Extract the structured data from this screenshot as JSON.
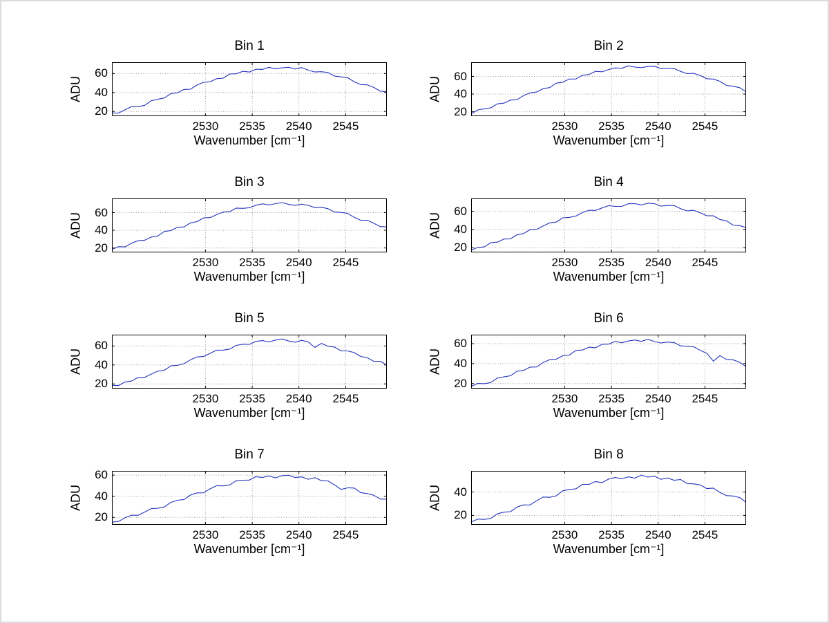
{
  "figure": {
    "background": "#ffffff",
    "border_color": "#dcdcdc"
  },
  "chart_data": {
    "type": "line",
    "layout": "4 rows x 2 columns of subplots, shared axis style, dotted grid on",
    "line_color": "#2233bb",
    "grid_color": "#9a9a9a",
    "axis_color": "#000000",
    "xlabel": "Wavenumber [cm⁻¹]",
    "ylabel": "ADU",
    "xticks": [
      2530,
      2535,
      2540,
      2545
    ],
    "xlim": [
      2520,
      2549.4
    ],
    "x": [
      2520.0,
      2520.7,
      2521.4,
      2522.1,
      2522.8,
      2523.5,
      2524.2,
      2524.9,
      2525.6,
      2526.3,
      2527.0,
      2527.7,
      2528.4,
      2529.1,
      2529.8,
      2530.5,
      2531.2,
      2531.9,
      2532.6,
      2533.3,
      2534.0,
      2534.7,
      2535.4,
      2536.1,
      2536.8,
      2537.5,
      2538.2,
      2538.9,
      2539.6,
      2540.3,
      2541.0,
      2541.7,
      2542.4,
      2543.1,
      2543.8,
      2544.5,
      2545.2,
      2545.9,
      2546.6,
      2547.3,
      2548.0,
      2548.7,
      2549.4
    ],
    "series": [
      {
        "name": "Bin 1",
        "ylim": [
          15,
          72
        ],
        "yticks": [
          20,
          40,
          60
        ],
        "values": [
          18.4,
          18.3,
          21.8,
          25.0,
          25.0,
          26.5,
          31.3,
          32.8,
          34.2,
          38.8,
          39.7,
          43.2,
          43.5,
          47.9,
          50.8,
          51.3,
          54.6,
          55.2,
          59.6,
          59.8,
          62.4,
          61.6,
          64.6,
          64.4,
          66.7,
          64.9,
          66.1,
          66.7,
          64.8,
          66.4,
          63.6,
          61.7,
          62.0,
          61.1,
          57.3,
          56.5,
          55.6,
          51.5,
          48.4,
          48.1,
          45.4,
          41.4,
          40.9
        ]
      },
      {
        "name": "Bin 2",
        "ylim": [
          15,
          76
        ],
        "yticks": [
          20,
          40,
          60
        ],
        "values": [
          17.6,
          22.0,
          23.3,
          24.4,
          28.9,
          29.7,
          33.2,
          33.6,
          38.2,
          41.4,
          42.3,
          46.1,
          47.3,
          52.4,
          53.4,
          57.0,
          57.1,
          61.2,
          62.2,
          65.7,
          65.2,
          67.7,
          69.6,
          69.1,
          71.9,
          70.5,
          69.8,
          71.4,
          71.5,
          68.9,
          69.0,
          68.9,
          65.6,
          63.1,
          63.4,
          61.0,
          57.3,
          57.0,
          54.4,
          49.8,
          48.8,
          47.3,
          42.5
        ]
      },
      {
        "name": "Bin 3",
        "ylim": [
          15,
          76
        ],
        "yticks": [
          20,
          40,
          60
        ],
        "values": [
          18.4,
          21.4,
          21.2,
          25.4,
          28.2,
          28.8,
          32.3,
          33.5,
          38.6,
          39.6,
          43.4,
          43.8,
          48.3,
          49.8,
          54.0,
          54.3,
          57.7,
          60.6,
          61.1,
          65.1,
          64.8,
          65.5,
          68.3,
          69.9,
          68.6,
          70.1,
          71.3,
          69.3,
          68.1,
          69.5,
          68.2,
          65.6,
          66.1,
          64.4,
          60.6,
          60.2,
          59.1,
          54.7,
          51.4,
          51.4,
          47.9,
          44.2,
          43.8
        ]
      },
      {
        "name": "Bin 4",
        "ylim": [
          15,
          74
        ],
        "yticks": [
          20,
          40,
          60
        ],
        "values": [
          17.4,
          20.4,
          21.0,
          25.6,
          26.2,
          29.6,
          29.8,
          34.2,
          35.6,
          39.9,
          40.2,
          43.9,
          47.2,
          48.2,
          52.8,
          53.3,
          54.7,
          58.6,
          61.1,
          60.9,
          63.6,
          66.1,
          65.3,
          65.4,
          68.2,
          68.3,
          66.9,
          68.8,
          68.3,
          65.6,
          66.3,
          66.3,
          62.8,
          60.4,
          61.1,
          58.3,
          55.0,
          55.0,
          51.0,
          49.6,
          44.9,
          44.3,
          42.2
        ]
      },
      {
        "name": "Bin 5",
        "ylim": [
          15,
          72
        ],
        "yticks": [
          20,
          40,
          60
        ],
        "values": [
          18.5,
          18.2,
          22.0,
          23.0,
          26.8,
          26.9,
          30.3,
          33.4,
          34.4,
          39.0,
          39.6,
          41.3,
          45.5,
          48.5,
          48.9,
          52.3,
          55.6,
          55.7,
          56.8,
          60.7,
          61.9,
          61.8,
          64.9,
          65.7,
          64.3,
          66.3,
          67.5,
          65.3,
          64.1,
          66.0,
          64.2,
          58.5,
          62.8,
          59.7,
          58.9,
          54.8,
          54.8,
          53.1,
          49.0,
          47.7,
          43.9,
          43.9,
          39.8
        ]
      },
      {
        "name": "Bin 6",
        "ylim": [
          15,
          69
        ],
        "yticks": [
          20,
          40,
          60
        ],
        "values": [
          17.2,
          20.1,
          19.9,
          21.0,
          25.6,
          26.8,
          27.9,
          32.4,
          33.2,
          36.5,
          36.7,
          41.1,
          44.0,
          44.5,
          47.9,
          48.6,
          53.2,
          53.6,
          56.5,
          55.9,
          59.3,
          59.5,
          62.3,
          60.9,
          62.6,
          63.7,
          62.3,
          64.4,
          62.1,
          60.7,
          61.6,
          61.1,
          57.8,
          57.4,
          56.9,
          53.2,
          50.4,
          42.5,
          48.0,
          44.2,
          43.9,
          41.4,
          37.0
        ]
      },
      {
        "name": "Bin 7",
        "ylim": [
          13,
          64
        ],
        "yticks": [
          20,
          40,
          60
        ],
        "values": [
          15.4,
          16.2,
          19.7,
          22.1,
          22.0,
          25.1,
          28.3,
          28.6,
          29.9,
          34.2,
          36.2,
          36.9,
          41.1,
          43.2,
          43.3,
          47.0,
          50.0,
          49.8,
          50.7,
          54.7,
          55.2,
          55.3,
          58.5,
          57.7,
          59.2,
          57.4,
          59.5,
          59.9,
          57.7,
          58.3,
          56.1,
          57.6,
          54.8,
          54.5,
          50.8,
          46.5,
          48.0,
          47.8,
          43.5,
          42.5,
          41.0,
          37.3,
          37.3
        ]
      },
      {
        "name": "Bin 8",
        "ylim": [
          12,
          58
        ],
        "yticks": [
          20,
          40
        ],
        "values": [
          14.4,
          16.9,
          16.6,
          17.5,
          21.3,
          22.8,
          23.2,
          27.1,
          29.0,
          28.9,
          32.5,
          35.7,
          35.5,
          36.7,
          41.1,
          42.0,
          42.7,
          46.5,
          46.5,
          48.9,
          47.9,
          51.0,
          52.4,
          51.3,
          52.9,
          51.8,
          54.4,
          52.7,
          53.5,
          50.8,
          52.0,
          50.0,
          50.6,
          47.2,
          46.9,
          46.0,
          42.9,
          43.3,
          39.6,
          36.9,
          36.6,
          35.3,
          31.2
        ]
      }
    ]
  }
}
